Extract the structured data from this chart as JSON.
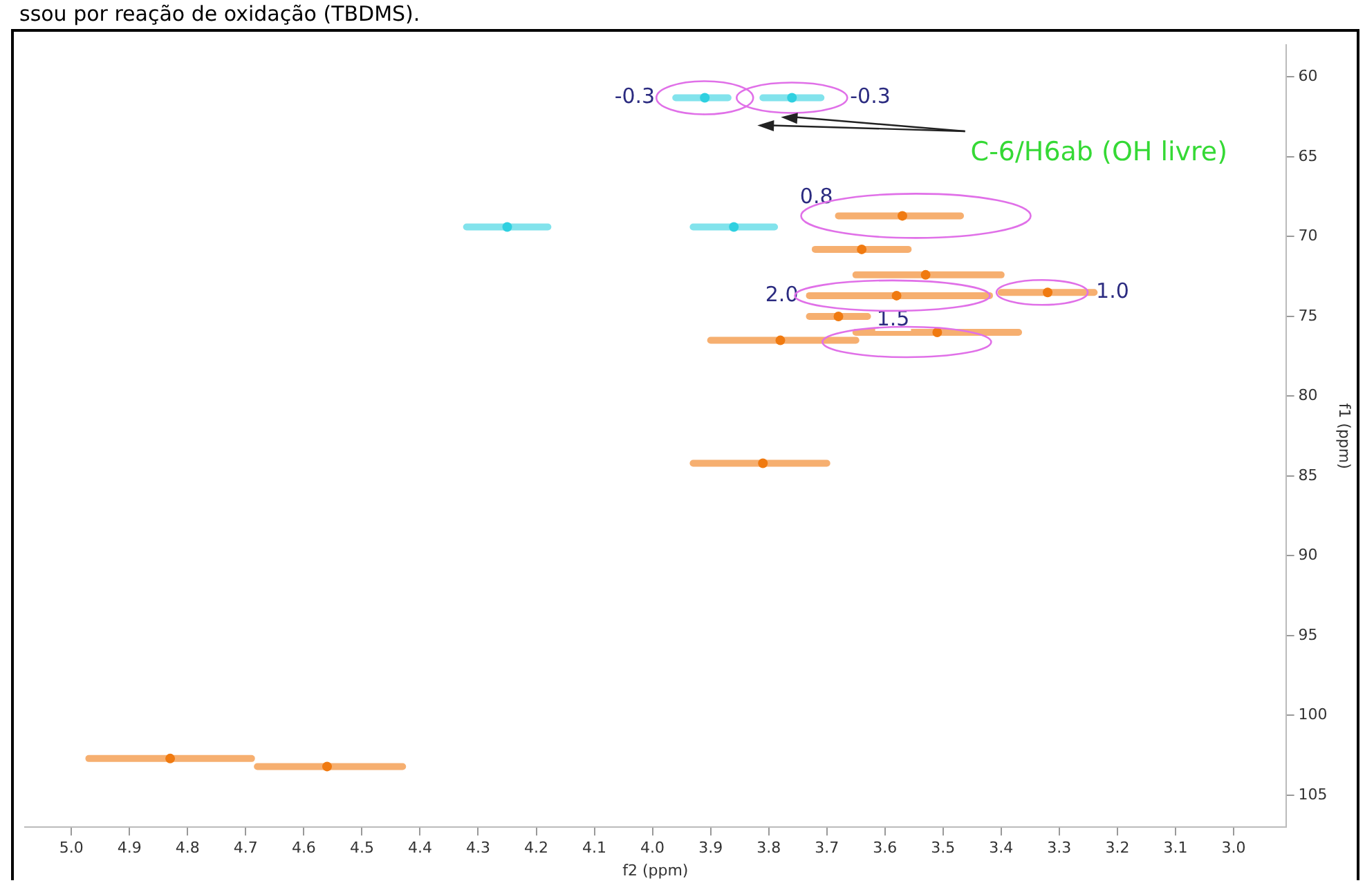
{
  "chart_data": {
    "type": "scatter",
    "title": "ssou por reação de oxidação (TBDMS).",
    "xlabel": "f2 (ppm)",
    "ylabel": "f1 (ppm)",
    "xlim": [
      5.08,
      2.91
    ],
    "ylim": [
      107,
      58
    ],
    "xticks": [
      {
        "value": 5.0,
        "label": "5.0"
      },
      {
        "value": 4.9,
        "label": "4.9"
      },
      {
        "value": 4.8,
        "label": "4.8"
      },
      {
        "value": 4.7,
        "label": "4.7"
      },
      {
        "value": 4.6,
        "label": "4.6"
      },
      {
        "value": 4.5,
        "label": "4.5"
      },
      {
        "value": 4.4,
        "label": "4.4"
      },
      {
        "value": 4.3,
        "label": "4.3"
      },
      {
        "value": 4.2,
        "label": "4.2"
      },
      {
        "value": 4.1,
        "label": "4.1"
      },
      {
        "value": 4.0,
        "label": "4.0"
      },
      {
        "value": 3.9,
        "label": "3.9"
      },
      {
        "value": 3.8,
        "label": "3.8"
      },
      {
        "value": 3.7,
        "label": "3.7"
      },
      {
        "value": 3.6,
        "label": "3.6"
      },
      {
        "value": 3.5,
        "label": "3.5"
      },
      {
        "value": 3.4,
        "label": "3.4"
      },
      {
        "value": 3.3,
        "label": "3.3"
      },
      {
        "value": 3.2,
        "label": "3.2"
      },
      {
        "value": 3.1,
        "label": "3.1"
      },
      {
        "value": 3.0,
        "label": "3.0"
      }
    ],
    "yticks": [
      60,
      65,
      70,
      75,
      80,
      85,
      90,
      95,
      100,
      105
    ],
    "grid": false,
    "legend": false,
    "series": [
      {
        "color": "#2fd0e0",
        "x": [
          3.91,
          3.76,
          4.25,
          3.86
        ],
        "values": [
          61.3,
          61.3,
          69.4,
          69.4
        ],
        "xerrors": [
          [
            3.87,
            3.96
          ],
          [
            3.71,
            3.81
          ],
          [
            4.18,
            4.32
          ],
          [
            3.79,
            3.93
          ]
        ]
      },
      {
        "color": "#f07a10",
        "x": [
          3.57,
          3.64,
          3.53,
          3.58,
          3.32,
          3.68,
          3.51,
          3.78,
          3.81,
          4.83,
          4.56
        ],
        "values": [
          68.7,
          70.8,
          72.4,
          73.7,
          73.5,
          75.0,
          76.0,
          76.5,
          84.2,
          102.7,
          103.2
        ],
        "xerrors": [
          [
            3.47,
            3.68
          ],
          [
            3.56,
            3.72
          ],
          [
            3.4,
            3.65
          ],
          [
            3.42,
            3.73
          ],
          [
            3.24,
            3.4
          ],
          [
            3.63,
            3.73
          ],
          [
            3.37,
            3.65
          ],
          [
            3.65,
            3.9
          ],
          [
            3.7,
            3.93
          ],
          [
            4.69,
            4.97
          ],
          [
            4.43,
            4.68
          ]
        ]
      }
    ],
    "annotations": [
      {
        "text": "-0.3",
        "x": 3.91,
        "y": 61.3
      },
      {
        "text": "-0.3",
        "x": 3.76,
        "y": 61.3
      },
      "C-6/H6ab (OH livre)",
      {
        "text": "0.8",
        "x": 3.68,
        "y": 68.7
      },
      {
        "text": "2.0",
        "x": 3.73,
        "y": 73.7
      },
      {
        "text": "1.0",
        "x": 3.32,
        "y": 73.5
      },
      {
        "text": "1.5",
        "x": 3.51,
        "y": 76.0
      }
    ]
  }
}
